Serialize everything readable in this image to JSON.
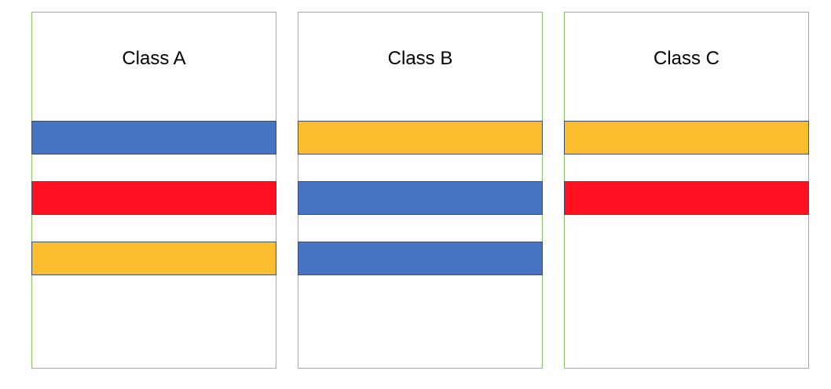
{
  "colors": {
    "blue": "#4674c2",
    "red": "#ff1020",
    "yellow": "#fbbd2e",
    "panel_border": "#8cc46a"
  },
  "classes": [
    {
      "title": "Class A",
      "bars": [
        "blue",
        "red",
        "yellow"
      ]
    },
    {
      "title": "Class B",
      "bars": [
        "yellow",
        "blue",
        "blue"
      ]
    },
    {
      "title": "Class C",
      "bars": [
        "yellow",
        "red"
      ]
    }
  ]
}
